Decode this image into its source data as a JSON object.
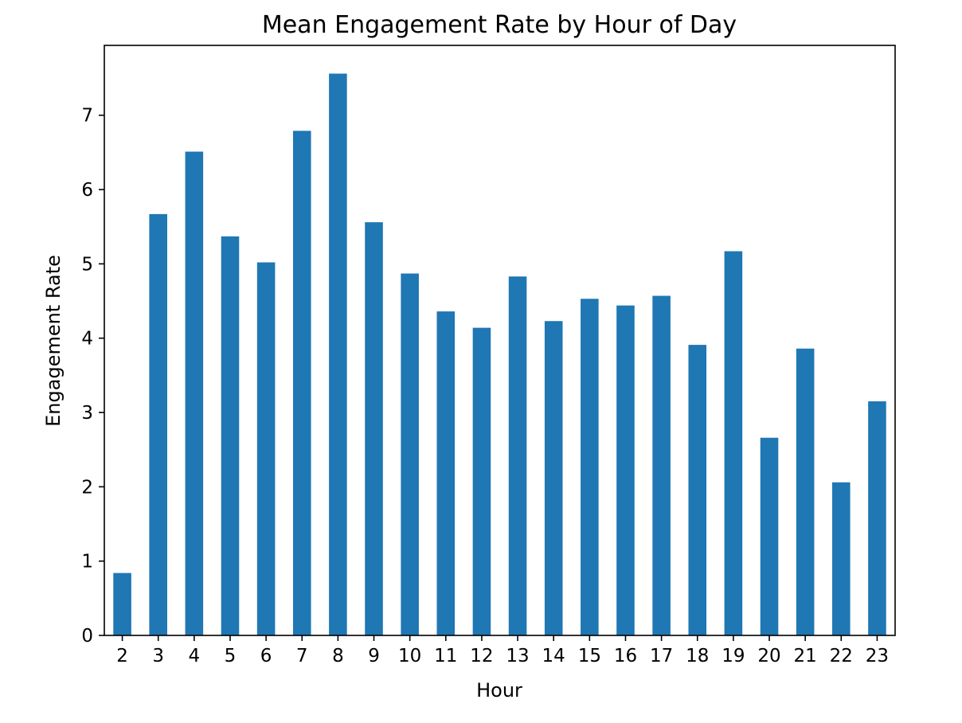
{
  "chart_data": {
    "type": "bar",
    "title": "Mean Engagement Rate by Hour of Day",
    "xlabel": "Hour",
    "ylabel": "Engagement Rate",
    "categories": [
      "2",
      "3",
      "4",
      "5",
      "6",
      "7",
      "8",
      "9",
      "10",
      "11",
      "12",
      "13",
      "14",
      "15",
      "16",
      "17",
      "18",
      "19",
      "20",
      "21",
      "22",
      "23"
    ],
    "values": [
      0.84,
      5.67,
      6.51,
      5.37,
      5.02,
      6.79,
      7.56,
      5.56,
      4.87,
      4.36,
      4.14,
      4.83,
      4.23,
      4.53,
      4.44,
      4.57,
      3.91,
      5.17,
      2.66,
      3.86,
      2.06,
      3.15
    ],
    "yticks": [
      0,
      1,
      2,
      3,
      4,
      5,
      6,
      7
    ],
    "ylim": [
      0,
      7.94
    ],
    "grid": false,
    "legend": "none",
    "bar_color": "#1f77b4"
  }
}
